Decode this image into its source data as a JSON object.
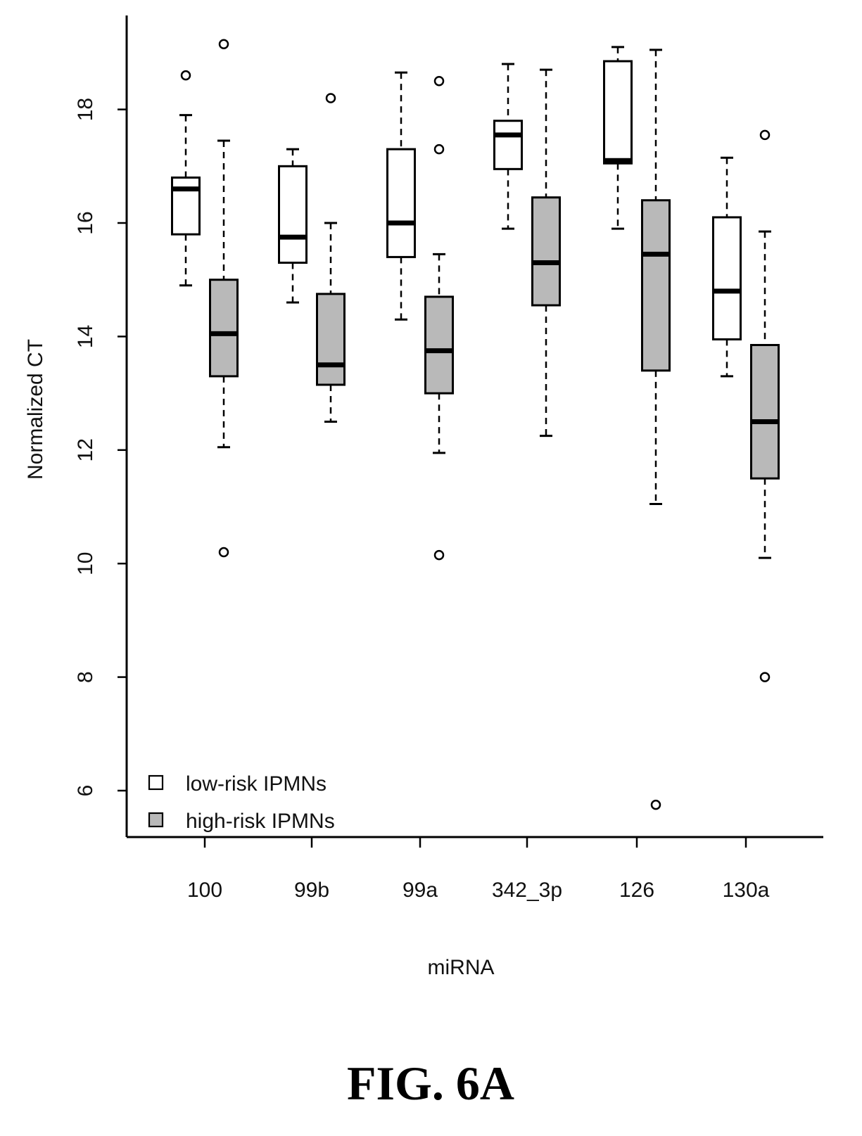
{
  "chart_data": {
    "type": "box",
    "xlabel": "miRNA",
    "ylabel": "Normalized CT",
    "ylim": [
      5.2,
      19.8
    ],
    "yticks": [
      6,
      8,
      10,
      12,
      14,
      16,
      18
    ],
    "categories": [
      "100",
      "99b",
      "99a",
      "342_3p",
      "126",
      "130a"
    ],
    "legend": {
      "placement": "bottom-left",
      "entries": [
        "low-risk IPMNs",
        "high-risk IPMNs"
      ]
    },
    "series": [
      {
        "name": "low-risk IPMNs",
        "fill": "#ffffff",
        "boxes": [
          {
            "whisker_low": 14.9,
            "q1": 15.8,
            "median": 16.6,
            "q3": 16.8,
            "whisker_high": 17.9,
            "outliers": [
              18.6
            ]
          },
          {
            "whisker_low": 14.6,
            "q1": 15.3,
            "median": 15.75,
            "q3": 17.0,
            "whisker_high": 17.3,
            "outliers": []
          },
          {
            "whisker_low": 14.3,
            "q1": 15.4,
            "median": 16.0,
            "q3": 17.3,
            "whisker_high": 18.65,
            "outliers": []
          },
          {
            "whisker_low": 15.9,
            "q1": 16.95,
            "median": 17.55,
            "q3": 17.8,
            "whisker_high": 18.8,
            "outliers": []
          },
          {
            "whisker_low": 15.9,
            "q1": 17.05,
            "median": 17.1,
            "q3": 18.85,
            "whisker_high": 19.1,
            "outliers": []
          },
          {
            "whisker_low": 13.3,
            "q1": 13.95,
            "median": 14.8,
            "q3": 16.1,
            "whisker_high": 17.15,
            "outliers": []
          }
        ]
      },
      {
        "name": "high-risk IPMNs",
        "fill": "#b9b9b9",
        "boxes": [
          {
            "whisker_low": 12.05,
            "q1": 13.3,
            "median": 14.05,
            "q3": 15.0,
            "whisker_high": 17.45,
            "outliers": [
              19.15,
              10.2
            ]
          },
          {
            "whisker_low": 12.5,
            "q1": 13.15,
            "median": 13.5,
            "q3": 14.75,
            "whisker_high": 16.0,
            "outliers": [
              18.2
            ]
          },
          {
            "whisker_low": 11.95,
            "q1": 13.0,
            "median": 13.75,
            "q3": 14.7,
            "whisker_high": 15.45,
            "outliers": [
              18.5,
              17.3,
              10.15
            ]
          },
          {
            "whisker_low": 12.25,
            "q1": 14.55,
            "median": 15.3,
            "q3": 16.45,
            "whisker_high": 18.7,
            "outliers": []
          },
          {
            "whisker_low": 11.05,
            "q1": 13.4,
            "median": 15.45,
            "q3": 16.4,
            "whisker_high": 19.05,
            "outliers": [
              5.75
            ]
          },
          {
            "whisker_low": 10.1,
            "q1": 11.5,
            "median": 12.5,
            "q3": 13.85,
            "whisker_high": 15.85,
            "outliers": [
              17.55,
              8.0
            ]
          }
        ]
      }
    ]
  },
  "caption": "FIG. 6A"
}
